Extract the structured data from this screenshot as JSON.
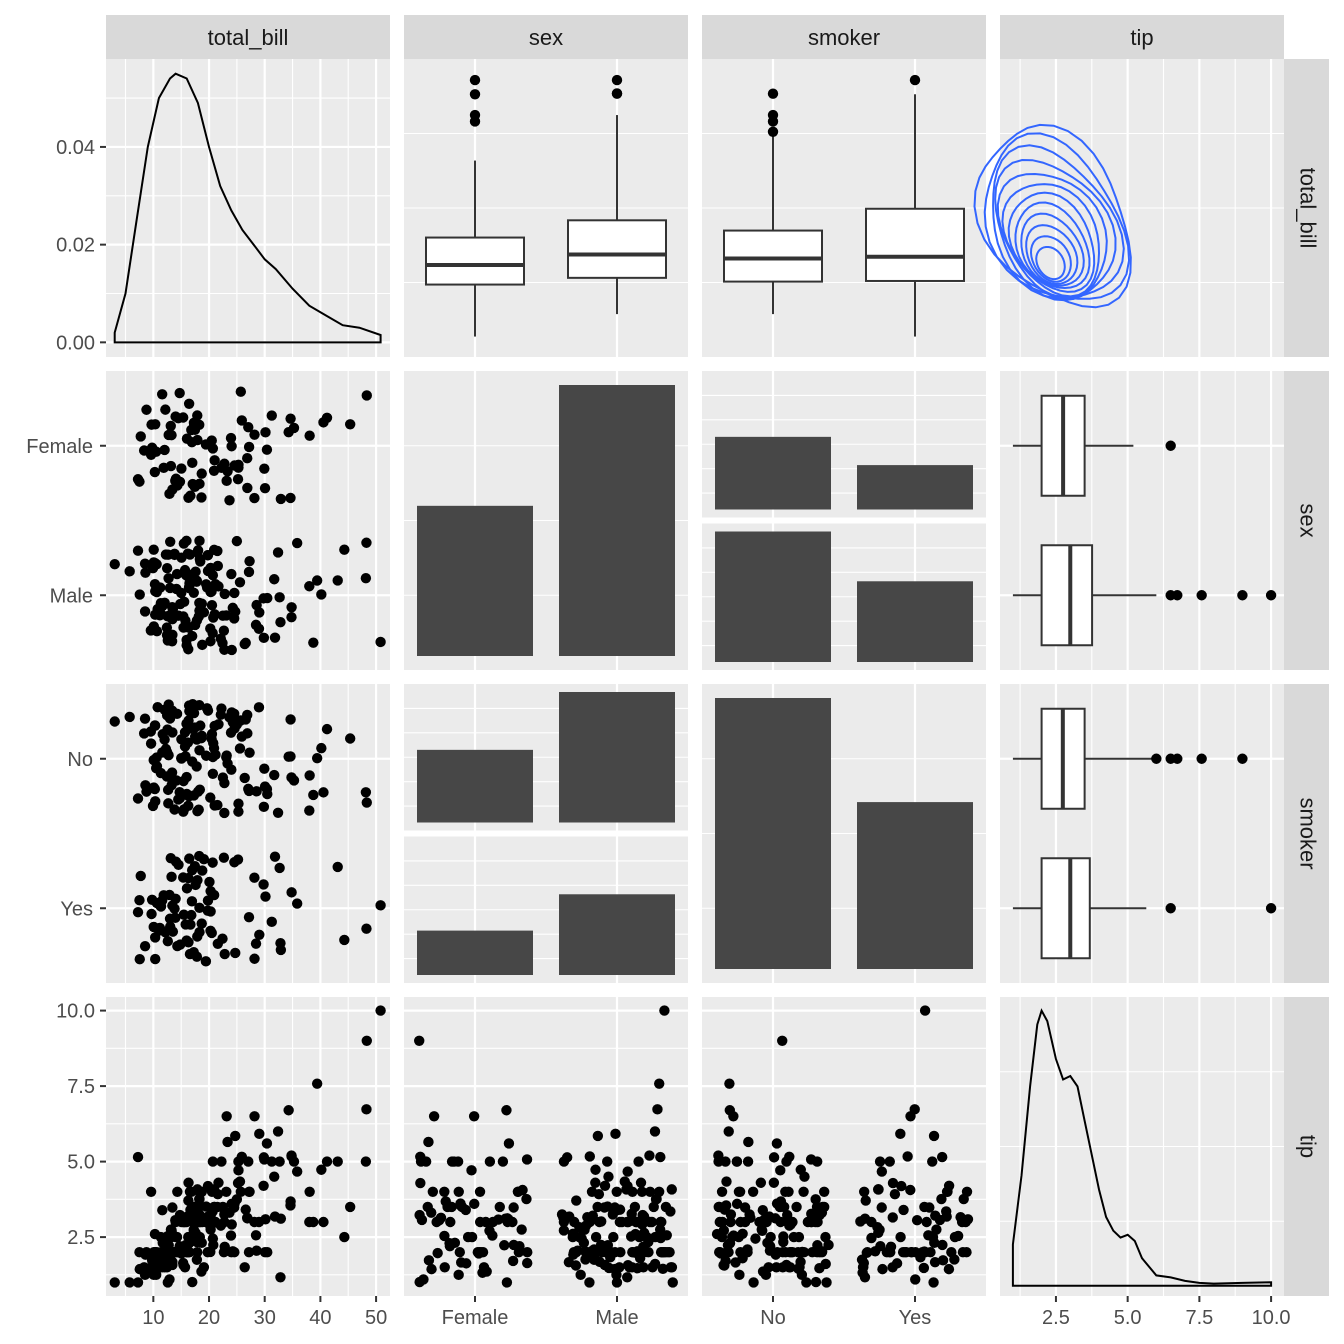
{
  "chart_data": {
    "type": "scatter-matrix",
    "variables": [
      "total_bill",
      "sex",
      "smoker",
      "tip"
    ],
    "colors": {
      "panel_bg": "#EBEBEB",
      "strip_bg": "#D9D9D9",
      "grid": "#FFFFFF",
      "point": "#000000",
      "bar": "#595959",
      "contour": "#3366FF"
    },
    "axes": {
      "total_bill": {
        "range": [
          1.5,
          52.5
        ],
        "ticks": [
          10,
          20,
          30,
          40,
          50
        ],
        "tick_labels": [
          "10",
          "20",
          "30",
          "40",
          "50"
        ]
      },
      "tip": {
        "range": [
          0.55,
          10.45
        ],
        "ticks": [
          2.5,
          5.0,
          7.5,
          10.0
        ],
        "tick_labels": [
          "2.5",
          "5.0",
          "7.5",
          "10.0"
        ]
      },
      "sex": {
        "levels": [
          "Female",
          "Male"
        ]
      },
      "smoker": {
        "levels": [
          "No",
          "Yes"
        ]
      },
      "density_y": {
        "range": [
          -0.003,
          0.058
        ],
        "ticks": [
          0.0,
          0.02,
          0.04
        ],
        "tick_labels": [
          "0.00",
          "0.02",
          "0.04"
        ]
      }
    },
    "counts": {
      "sex": {
        "Female": 87,
        "Male": 157
      },
      "smoker": {
        "No": 151,
        "Yes": 93
      },
      "sex_by_smoker": {
        "Female": {
          "No": 54,
          "Yes": 33
        },
        "Male": {
          "No": 97,
          "Yes": 60
        }
      }
    },
    "density_total_bill": {
      "x": [
        3.07,
        5,
        7,
        9,
        11,
        13,
        14,
        16,
        18,
        20,
        22,
        24,
        26,
        28,
        30,
        32,
        35,
        38,
        41,
        44,
        47,
        50.81
      ],
      "y": [
        0.002,
        0.01,
        0.025,
        0.04,
        0.05,
        0.054,
        0.055,
        0.054,
        0.049,
        0.04,
        0.032,
        0.027,
        0.023,
        0.02,
        0.017,
        0.015,
        0.011,
        0.0075,
        0.0055,
        0.0035,
        0.003,
        0.0015
      ]
    },
    "density_tip": {
      "x": [
        1.0,
        1.3,
        1.6,
        1.85,
        2.0,
        2.2,
        2.5,
        2.75,
        3.0,
        3.25,
        3.5,
        3.75,
        4.0,
        4.25,
        4.5,
        4.75,
        5.0,
        5.25,
        5.5,
        6.0,
        6.5,
        7.0,
        7.5,
        8.0,
        9.0,
        10.0
      ],
      "y": [
        0.06,
        0.16,
        0.29,
        0.38,
        0.4,
        0.385,
        0.33,
        0.3,
        0.305,
        0.29,
        0.24,
        0.19,
        0.14,
        0.1,
        0.08,
        0.07,
        0.074,
        0.065,
        0.04,
        0.015,
        0.012,
        0.007,
        0.004,
        0.003,
        0.004,
        0.005
      ]
    },
    "boxplots": {
      "total_bill_by_sex": [
        {
          "level": "Female",
          "min": 3.07,
          "q1": 12.75,
          "median": 16.4,
          "q3": 21.5,
          "max": 35.83,
          "outliers": [
            43.11,
            44.3,
            48.17,
            50.81
          ]
        },
        {
          "level": "Male",
          "min": 7.25,
          "q1": 14.0,
          "median": 18.35,
          "q3": 24.71,
          "max": 44.3,
          "outliers": [
            48.27,
            48.33,
            50.81
          ]
        }
      ],
      "total_bill_by_smoker": [
        {
          "level": "No",
          "min": 7.25,
          "q1": 13.3,
          "median": 17.6,
          "q3": 22.8,
          "max": 40.55,
          "outliers": [
            41.19,
            43.11,
            44.3,
            48.27
          ]
        },
        {
          "level": "Yes",
          "min": 3.07,
          "q1": 13.42,
          "median": 17.92,
          "q3": 26.86,
          "max": 48.17,
          "outliers": [
            50.81
          ]
        }
      ],
      "tip_by_sex": [
        {
          "level": "Female",
          "min": 1.0,
          "q1": 2.0,
          "median": 2.75,
          "q3": 3.5,
          "max": 5.2,
          "outliers": [
            6.5
          ]
        },
        {
          "level": "Male",
          "min": 1.0,
          "q1": 2.0,
          "median": 3.0,
          "q3": 3.76,
          "max": 6.0,
          "outliers": [
            6.5,
            6.73,
            7.58,
            9.0,
            10.0
          ]
        }
      ],
      "tip_by_smoker": [
        {
          "level": "No",
          "min": 1.0,
          "q1": 2.0,
          "median": 2.74,
          "q3": 3.5,
          "max": 5.85,
          "outliers": [
            6.0,
            6.5,
            6.73,
            7.58,
            9.0
          ]
        },
        {
          "level": "Yes",
          "min": 1.0,
          "q1": 2.0,
          "median": 3.0,
          "q3": 3.68,
          "max": 5.65,
          "outliers": [
            6.5,
            10.0
          ]
        }
      ]
    },
    "scatter_total_bill_tip": {
      "x": [
        16.99,
        10.34,
        21.01,
        23.68,
        24.59,
        25.29,
        8.77,
        26.88,
        15.04,
        14.78,
        10.27,
        35.26,
        15.42,
        18.43,
        14.83,
        21.58,
        10.33,
        16.29,
        16.97,
        20.65,
        17.92,
        20.29,
        15.77,
        39.42,
        19.82,
        17.81,
        13.37,
        12.69,
        21.7,
        19.65,
        9.55,
        18.35,
        15.06,
        20.69,
        17.78,
        24.06,
        16.31,
        16.93,
        18.69,
        31.27,
        16.04,
        17.46,
        13.94,
        9.68,
        30.4,
        18.29,
        22.23,
        32.4,
        28.55,
        18.04,
        12.54,
        10.29,
        34.81,
        9.94,
        25.56,
        19.49,
        38.01,
        26.41,
        11.24,
        48.27,
        20.29,
        13.81,
        11.02,
        18.29,
        17.59,
        20.08,
        16.45,
        3.07,
        20.23,
        15.01,
        12.02,
        17.07,
        26.86,
        25.28,
        14.73,
        10.51,
        17.92,
        27.2,
        22.76,
        17.29,
        19.44,
        16.66,
        10.07,
        32.68,
        15.98,
        34.83,
        13.03,
        18.28,
        24.71,
        21.16,
        28.97,
        22.49,
        5.75,
        16.32,
        22.75,
        40.17,
        27.28,
        12.03,
        21.01,
        12.46,
        11.35,
        15.38,
        44.3,
        22.42,
        20.92,
        15.36,
        20.49,
        25.21,
        18.24,
        14.31,
        14.0,
        7.25,
        38.07,
        23.95,
        25.71,
        17.31,
        29.93,
        10.65,
        12.43,
        24.08,
        11.69,
        13.42,
        14.26,
        15.95,
        12.48,
        29.8,
        8.52,
        14.52,
        11.38,
        22.82,
        19.08,
        20.27,
        11.17,
        12.26,
        18.26,
        8.51,
        10.33,
        14.15,
        16.0,
        13.16,
        17.47,
        34.3,
        41.19,
        27.05,
        16.43,
        8.35,
        18.64,
        11.87,
        9.78,
        7.51,
        14.07,
        13.13,
        17.26,
        24.55,
        19.77,
        29.85,
        48.17,
        25.0,
        13.39,
        16.49,
        21.5,
        12.66,
        16.21,
        13.81,
        17.51,
        24.52,
        20.76,
        31.71,
        10.59,
        10.63,
        50.81,
        15.81,
        7.25,
        31.85,
        16.82,
        32.9,
        17.89,
        14.48,
        9.6,
        34.63,
        34.65,
        23.33,
        45.35,
        23.17,
        40.55,
        20.69,
        20.9,
        30.46,
        18.15,
        23.1,
        15.69,
        19.81,
        28.44,
        15.48,
        16.58,
        7.56,
        10.34,
        43.11,
        13.0,
        13.51,
        18.71,
        12.74,
        13.0,
        16.4,
        20.53,
        16.47,
        26.59,
        38.73,
        24.27,
        12.76,
        30.06,
        25.89,
        48.33,
        13.27,
        28.17,
        12.9,
        28.15,
        11.59,
        7.74,
        30.14,
        12.16,
        13.42,
        8.58,
        15.98,
        13.42,
        16.27,
        10.09,
        20.45,
        13.28,
        22.12,
        24.01,
        15.69,
        11.61,
        10.77,
        15.53,
        10.07,
        12.6,
        32.83,
        35.83,
        29.03,
        27.18,
        22.67,
        17.82,
        18.78
      ],
      "y": [
        1.01,
        1.66,
        3.5,
        3.31,
        3.61,
        4.71,
        2.0,
        3.12,
        1.96,
        3.23,
        1.71,
        5.0,
        1.57,
        3.0,
        3.02,
        3.92,
        1.67,
        3.71,
        3.5,
        3.35,
        4.08,
        2.75,
        2.23,
        7.58,
        3.18,
        2.34,
        2.0,
        2.0,
        4.3,
        3.0,
        1.45,
        2.5,
        3.0,
        2.45,
        3.27,
        3.6,
        2.0,
        3.07,
        2.31,
        5.0,
        2.24,
        2.54,
        3.06,
        1.32,
        5.6,
        3.0,
        5.0,
        6.0,
        2.05,
        3.0,
        2.5,
        2.6,
        5.2,
        1.56,
        4.34,
        3.51,
        3.0,
        1.5,
        1.76,
        6.73,
        3.21,
        2.0,
        1.98,
        3.76,
        2.64,
        3.15,
        2.47,
        1.0,
        2.01,
        2.09,
        1.97,
        3.0,
        3.14,
        5.0,
        2.2,
        1.25,
        3.08,
        4.0,
        3.0,
        2.71,
        3.0,
        3.4,
        1.83,
        5.0,
        2.03,
        5.17,
        2.0,
        4.0,
        5.85,
        3.0,
        3.0,
        3.5,
        1.0,
        4.3,
        3.25,
        4.73,
        4.0,
        1.5,
        3.0,
        1.5,
        2.5,
        3.0,
        2.5,
        3.48,
        4.08,
        1.64,
        4.06,
        4.29,
        3.76,
        4.0,
        3.0,
        1.0,
        4.0,
        2.55,
        4.0,
        3.5,
        5.07,
        1.5,
        1.8,
        2.92,
        2.31,
        1.68,
        2.5,
        2.0,
        2.52,
        4.2,
        1.48,
        2.0,
        2.0,
        2.18,
        1.5,
        2.83,
        1.5,
        2.0,
        3.25,
        1.25,
        2.0,
        2.0,
        2.0,
        2.75,
        3.5,
        6.7,
        5.0,
        5.0,
        2.3,
        1.5,
        1.36,
        1.63,
        1.73,
        2.0,
        2.5,
        2.0,
        2.74,
        2.0,
        2.0,
        5.14,
        5.0,
        3.75,
        2.61,
        2.0,
        3.5,
        2.5,
        2.0,
        2.0,
        3.0,
        3.48,
        2.24,
        4.5,
        1.61,
        2.0,
        10.0,
        3.16,
        5.15,
        3.18,
        4.0,
        3.11,
        2.0,
        2.0,
        4.0,
        3.55,
        3.68,
        5.65,
        3.5,
        6.5,
        3.0,
        5.0,
        3.5,
        2.0,
        3.5,
        4.0,
        1.5,
        4.19,
        2.56,
        2.02,
        4.0,
        1.44,
        2.0,
        5.0,
        2.0,
        2.0,
        4.0,
        2.01,
        2.0,
        2.5,
        4.0,
        3.23,
        3.41,
        3.0,
        2.03,
        2.23,
        2.0,
        5.16,
        9.0,
        2.5,
        6.5,
        1.1,
        3.0,
        1.5,
        1.44,
        3.09,
        2.2,
        3.48,
        1.92,
        3.0,
        1.58,
        2.5,
        2.0,
        3.0,
        2.72,
        2.88,
        2.0,
        3.0,
        3.39,
        1.47,
        3.0,
        1.25,
        1.0,
        1.17,
        4.67,
        5.92,
        2.0,
        2.0,
        1.75,
        3.0
      ]
    }
  }
}
